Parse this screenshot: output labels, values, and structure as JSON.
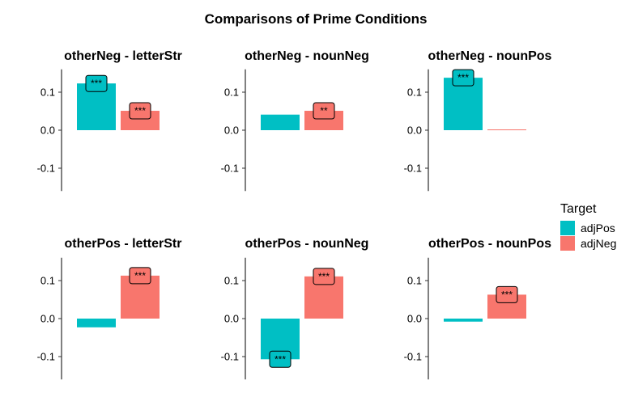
{
  "chart_data": {
    "type": "bar",
    "title": "Comparisons of Prime Conditions",
    "xlabel": "",
    "ylabel": "",
    "ylim": [
      -0.16,
      0.16
    ],
    "yticks": [
      0.1,
      0.0,
      -0.1
    ],
    "ytick_labels": [
      "0.1",
      "0.0",
      "-0.1"
    ],
    "grid": false,
    "legend": {
      "title": "Target",
      "position": "right",
      "entries": [
        {
          "label": "adjPos",
          "color": "#00BFC4"
        },
        {
          "label": "adjNeg",
          "color": "#F8766D"
        }
      ]
    },
    "series_colors": [
      "#00BFC4",
      "#F8766D"
    ],
    "panels": [
      {
        "title": "otherNeg - letterStr",
        "values": [
          0.123,
          0.051
        ],
        "sig": [
          "***",
          "***"
        ]
      },
      {
        "title": "otherNeg - nounNeg",
        "values": [
          0.041,
          0.051
        ],
        "sig": [
          "",
          "**"
        ]
      },
      {
        "title": "otherNeg - nounPos",
        "values": [
          0.138,
          0.002
        ],
        "sig": [
          "***",
          ""
        ]
      },
      {
        "title": "otherPos - letterStr",
        "values": [
          -0.023,
          0.113
        ],
        "sig": [
          "",
          "***"
        ]
      },
      {
        "title": "otherPos - nounNeg",
        "values": [
          -0.107,
          0.111
        ],
        "sig": [
          "***",
          "***"
        ]
      },
      {
        "title": "otherPos - nounPos",
        "values": [
          -0.008,
          0.063
        ],
        "sig": [
          "",
          "***"
        ]
      }
    ]
  }
}
